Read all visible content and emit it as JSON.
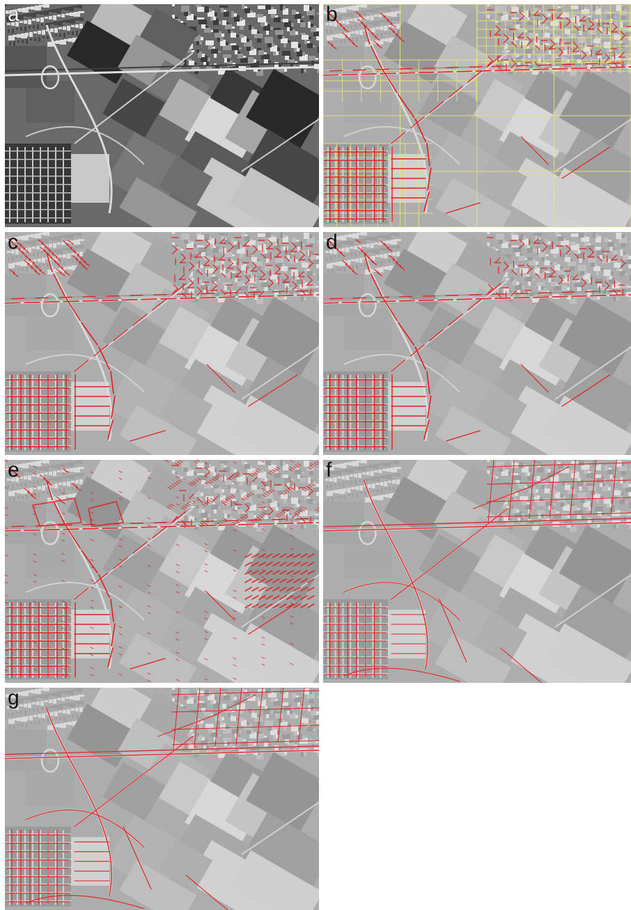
{
  "figure": {
    "panels": [
      {
        "label": "a",
        "style": "original"
      },
      {
        "label": "b",
        "style": "grid"
      },
      {
        "label": "c",
        "style": "segments"
      },
      {
        "label": "d",
        "style": "segments"
      },
      {
        "label": "e",
        "style": "dense"
      },
      {
        "label": "f",
        "style": "network"
      },
      {
        "label": "g",
        "style": "network"
      }
    ]
  },
  "colors": {
    "overlay_line": "#e02020",
    "grid_line": "#e8e07a",
    "label_text": "#111111"
  }
}
